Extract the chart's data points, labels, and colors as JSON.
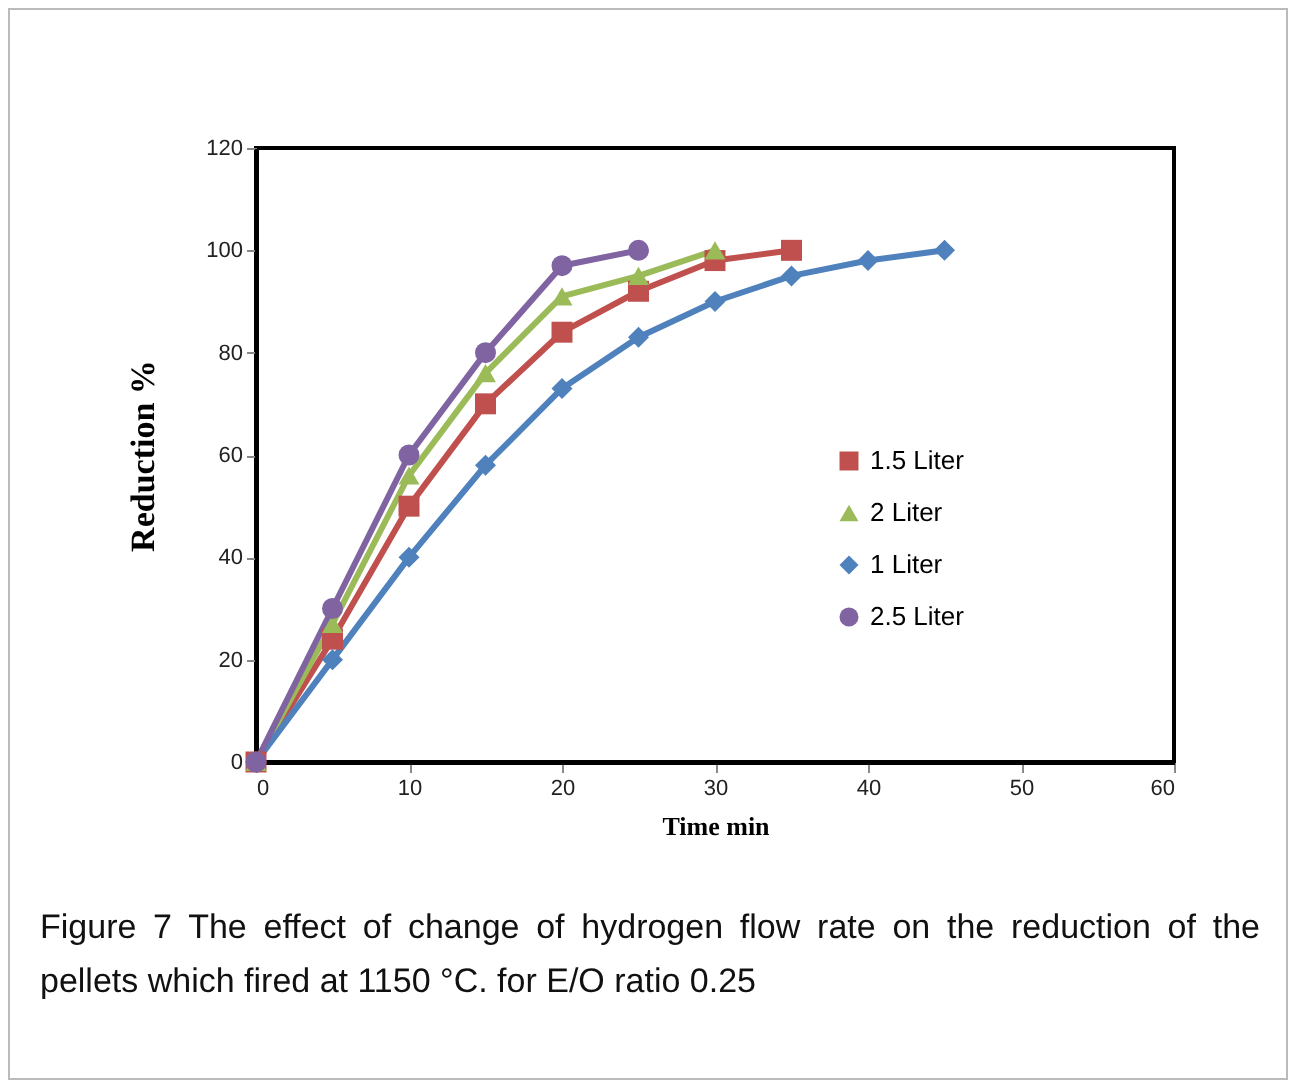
{
  "chart_data": {
    "type": "line",
    "xlabel": "Time min",
    "ylabel": "Reduction %",
    "annotations": [
      "Figure 7 The effect of change of hydrogen flow rate on the reduction of the pellets which fired at 1150 °C. for   E/O ratio  0.25"
    ],
    "xlim": [
      0,
      60
    ],
    "xticks": [
      0,
      10,
      20,
      30,
      40,
      50,
      60
    ],
    "ylim": [
      0,
      120
    ],
    "yticks": [
      0,
      20,
      40,
      60,
      80,
      100,
      120
    ],
    "grid": false,
    "legend": "right",
    "line_style": "solid",
    "series": [
      {
        "name": "1.5 Liter",
        "color": "#c0504d",
        "marker": "square",
        "x": [
          0,
          5,
          10,
          15,
          20,
          25,
          30,
          35
        ],
        "values": [
          0,
          24,
          50,
          70,
          84,
          92,
          98,
          100
        ]
      },
      {
        "name": "2 Liter",
        "color": "#9bbb59",
        "marker": "triangle",
        "x": [
          0,
          5,
          10,
          15,
          20,
          25,
          30
        ],
        "values": [
          0,
          27,
          56,
          76,
          91,
          95,
          100
        ]
      },
      {
        "name": "1 Liter",
        "color": "#4f81bd",
        "marker": "diamond",
        "x": [
          0,
          5,
          10,
          15,
          20,
          25,
          30,
          35,
          40,
          45
        ],
        "values": [
          0,
          20,
          40,
          58,
          73,
          83,
          90,
          95,
          98,
          100
        ]
      },
      {
        "name": "2.5 Liter",
        "color": "#8064a2",
        "marker": "circle",
        "x": [
          0,
          5,
          10,
          15,
          20,
          25
        ],
        "values": [
          0,
          30,
          60,
          80,
          97,
          100
        ]
      }
    ]
  }
}
